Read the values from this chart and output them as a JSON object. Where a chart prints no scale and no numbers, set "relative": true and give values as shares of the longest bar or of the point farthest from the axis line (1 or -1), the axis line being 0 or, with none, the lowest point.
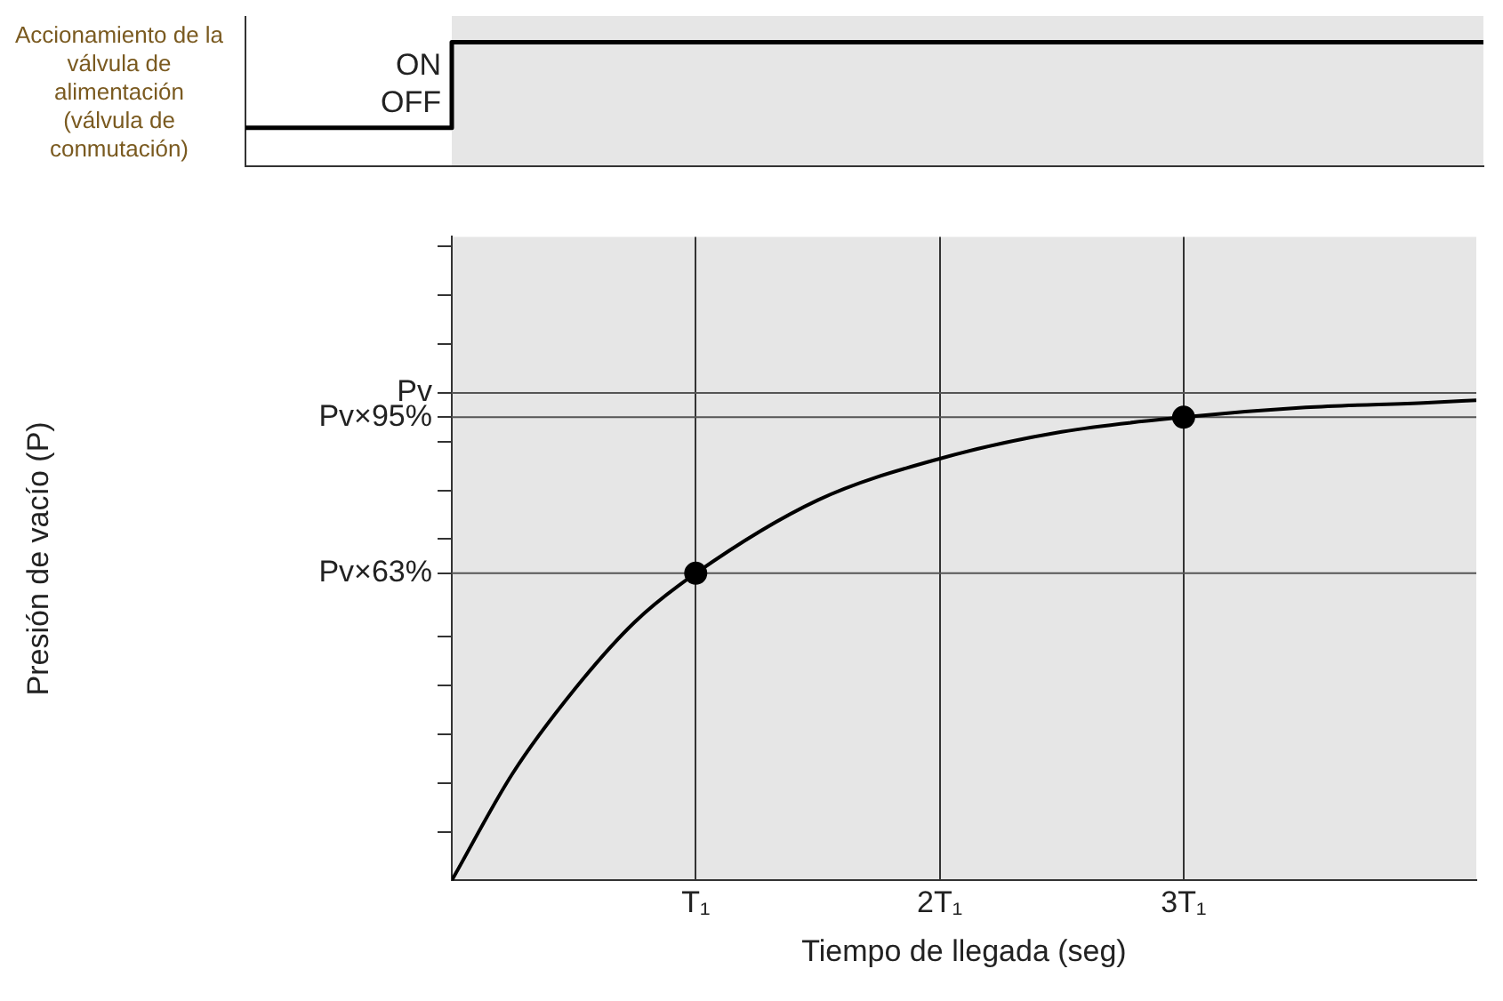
{
  "chart_data": [
    {
      "type": "step",
      "ylabel": "Accionamiento de la válvula de alimentación (válvula de conmutación)",
      "categories": [
        null,
        null,
        null,
        null,
        null,
        null,
        null
      ],
      "series": [
        {
          "color": "#000000",
          "values": [
            0,
            1,
            1,
            1,
            1,
            1,
            1
          ]
        }
      ],
      "relative": true,
      "annotations": [
        "ON",
        "OFF"
      ],
      "grid": false,
      "legend": false,
      "marker": "none"
    },
    {
      "type": "line",
      "xlabel": "Tiempo de llegada (seg)",
      "ylabel": "Presión de vacío (P)",
      "series": [
        {
          "color": "#000000",
          "marker": "none",
          "x": [
            0,
            0.25,
            0.5,
            0.75,
            1,
            1.5,
            2,
            2.5,
            3,
            3.5,
            4,
            4.2
          ],
          "values": [
            0,
            0.22,
            0.39,
            0.53,
            0.63,
            0.78,
            0.865,
            0.92,
            0.95,
            0.97,
            0.98,
            0.985
          ]
        },
        {
          "type": "scatter",
          "marker": "circle",
          "color": "#000000",
          "x": [
            1,
            3
          ],
          "values": [
            0.63,
            0.95
          ]
        }
      ],
      "xlim": [
        0,
        4.2
      ],
      "ylim": [
        0,
        1.32
      ],
      "xticks": [
        {
          "value": 1,
          "label": "T₁"
        },
        {
          "value": 2,
          "label": "2T₁"
        },
        {
          "value": 3,
          "label": "3T₁"
        }
      ],
      "yticks": [
        {
          "value": 0.1,
          "label": null
        },
        {
          "value": 0.2,
          "label": null
        },
        {
          "value": 0.3,
          "label": null
        },
        {
          "value": 0.4,
          "label": null
        },
        {
          "value": 0.5,
          "label": null
        },
        {
          "value": 0.63,
          "label": "Pv×63%"
        },
        {
          "value": 0.7,
          "label": null
        },
        {
          "value": 0.8,
          "label": null
        },
        {
          "value": 0.9,
          "label": null
        },
        {
          "value": 0.95,
          "label": "Pv×95%"
        },
        {
          "value": 1,
          "label": "Pv"
        },
        {
          "value": 1.1,
          "label": null
        },
        {
          "value": 1.2,
          "label": null
        },
        {
          "value": 1.3,
          "label": null
        }
      ],
      "ref_lines": [
        {
          "axis": "y",
          "value": 1,
          "color": "#555555"
        },
        {
          "axis": "y",
          "value": 0.95,
          "color": "#555555"
        },
        {
          "axis": "y",
          "value": 0.63,
          "color": "#555555"
        }
      ],
      "bands": [
        {
          "axis": "x",
          "from": 0,
          "to": 4.2,
          "color": "#e6e6e6"
        }
      ],
      "grid": "x",
      "legend": false
    }
  ]
}
